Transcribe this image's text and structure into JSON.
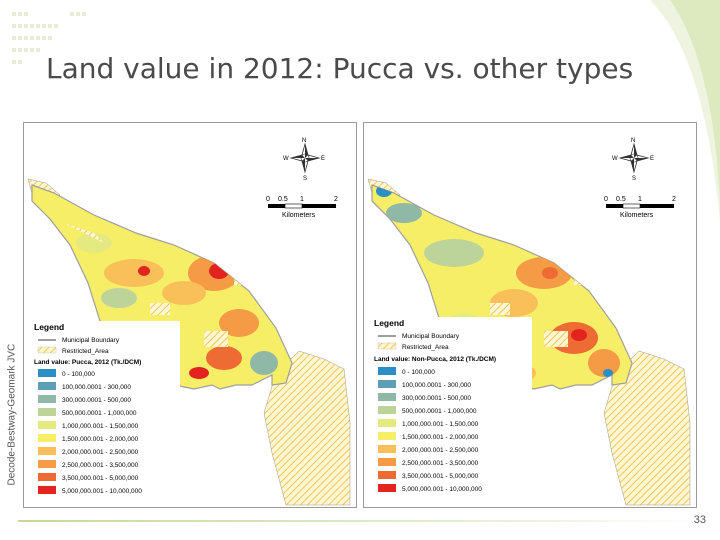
{
  "title": "Land value in 2012: Pucca vs. other types",
  "credit": "Decode-Bestway-Geomark JVC",
  "page_number": "33",
  "compass": {
    "n": "N",
    "s": "S",
    "e": "E",
    "w": "W"
  },
  "scale": {
    "ticks": [
      "0",
      "0.5",
      "1",
      "2"
    ],
    "unit": "Kilometers"
  },
  "colors": {
    "accent_green": "#9bbb59",
    "hatch": "#f2c94c",
    "boundary": "#9e9e9e"
  },
  "left_map": {
    "legend_title": "Legend",
    "boundary_label": "Municipal Boundary",
    "restricted_label": "Restricted_Area",
    "land_value_title": "Land value: Pucca, 2012 (Tk./DCM)",
    "classes": [
      {
        "label": "0 - 100,000",
        "color": "#2b8fc7"
      },
      {
        "label": "100,000.0001 - 300,000",
        "color": "#5f9fb5"
      },
      {
        "label": "300,000.0001 - 500,000",
        "color": "#8fb8a6"
      },
      {
        "label": "500,000.0001 - 1,000,000",
        "color": "#bcd39a"
      },
      {
        "label": "1,000,000.001 - 1,500,000",
        "color": "#e4ea7f"
      },
      {
        "label": "1,500,000.001 - 2,000,000",
        "color": "#f7ee68"
      },
      {
        "label": "2,000,000.001 - 2,500,000",
        "color": "#f9c05a"
      },
      {
        "label": "2,500,000.001 - 3,500,000",
        "color": "#f59a45"
      },
      {
        "label": "3,500,000.001 - 5,000,000",
        "color": "#ee6b33"
      },
      {
        "label": "5,000,000.001 - 10,000,000",
        "color": "#e3231f"
      }
    ]
  },
  "right_map": {
    "legend_title": "Legend",
    "boundary_label": "Municipal Boundary",
    "restricted_label": "Restricted_Area",
    "land_value_title": "Land value: Non-Pucca, 2012 (Tk./DCM)",
    "classes": [
      {
        "label": "0 - 100,000",
        "color": "#2b8fc7"
      },
      {
        "label": "100,000.0001 - 300,000",
        "color": "#5f9fb5"
      },
      {
        "label": "300,000.0001 - 500,000",
        "color": "#8fb8a6"
      },
      {
        "label": "500,000.0001 - 1,000,000",
        "color": "#bcd39a"
      },
      {
        "label": "1,000,000.001 - 1,500,000",
        "color": "#e4ea7f"
      },
      {
        "label": "1,500,000.001 - 2,000,000",
        "color": "#f7ee68"
      },
      {
        "label": "2,000,000.001 - 2,500,000",
        "color": "#f9c05a"
      },
      {
        "label": "2,500,000.001 - 3,500,000",
        "color": "#f59a45"
      },
      {
        "label": "3,500,000.001 - 5,000,000",
        "color": "#ee6b33"
      },
      {
        "label": "5,000,000.001 - 10,000,000",
        "color": "#e3231f"
      }
    ]
  }
}
